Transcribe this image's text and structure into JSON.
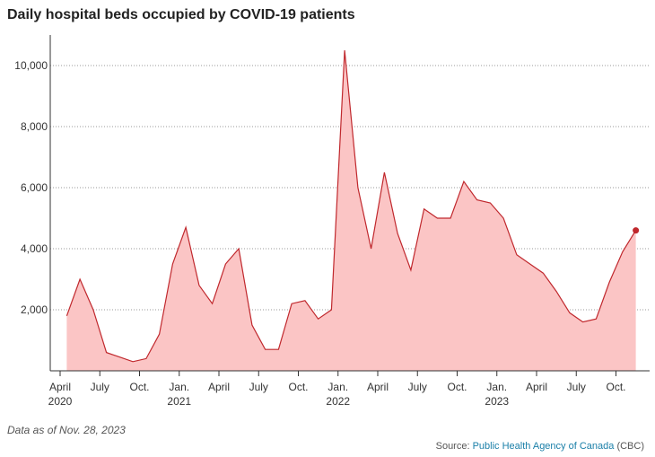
{
  "chart_data": {
    "type": "area",
    "title": "Daily hospital beds occupied by COVID-19 patients",
    "x": [
      "2020-04",
      "2020-05",
      "2020-06",
      "2020-07",
      "2020-08",
      "2020-09",
      "2020-10",
      "2020-11",
      "2020-12",
      "2021-01",
      "2021-02",
      "2021-03",
      "2021-04",
      "2021-05",
      "2021-06",
      "2021-07",
      "2021-08",
      "2021-09",
      "2021-10",
      "2021-11",
      "2021-12",
      "2022-01",
      "2022-02",
      "2022-03",
      "2022-04",
      "2022-05",
      "2022-06",
      "2022-07",
      "2022-08",
      "2022-09",
      "2022-10",
      "2022-11",
      "2022-12",
      "2023-01",
      "2023-02",
      "2023-03",
      "2023-04",
      "2023-05",
      "2023-06",
      "2023-07",
      "2023-08",
      "2023-09",
      "2023-10",
      "2023-11"
    ],
    "values": [
      1800,
      3000,
      2000,
      600,
      450,
      300,
      400,
      1200,
      3500,
      4700,
      2800,
      2200,
      3500,
      4000,
      1500,
      700,
      700,
      2200,
      2300,
      1700,
      2000,
      10500,
      6000,
      4000,
      6500,
      4500,
      3300,
      5300,
      5000,
      5000,
      6200,
      5600,
      5500,
      5000,
      3800,
      3500,
      3200,
      2600,
      1900,
      1600,
      1700,
      2900,
      3900,
      4600
    ],
    "line_color": "#c0282d",
    "fill_color": "#fbc5c5",
    "ylim": [
      0,
      11000
    ],
    "yticks": [
      {
        "value": 2000,
        "label": "2,000"
      },
      {
        "value": 4000,
        "label": "4,000"
      },
      {
        "value": 6000,
        "label": "6,000"
      },
      {
        "value": 8000,
        "label": "8,000"
      },
      {
        "value": 10000,
        "label": "10,000"
      }
    ],
    "xticks": [
      {
        "value": "2020-04",
        "label": "April"
      },
      {
        "value": "2020-07",
        "label": "July"
      },
      {
        "value": "2020-10",
        "label": "Oct."
      },
      {
        "value": "2021-01",
        "label": "Jan."
      },
      {
        "value": "2021-04",
        "label": "April"
      },
      {
        "value": "2021-07",
        "label": "July"
      },
      {
        "value": "2021-10",
        "label": "Oct."
      },
      {
        "value": "2022-01",
        "label": "Jan."
      },
      {
        "value": "2022-04",
        "label": "April"
      },
      {
        "value": "2022-07",
        "label": "July"
      },
      {
        "value": "2022-10",
        "label": "Oct."
      },
      {
        "value": "2023-01",
        "label": "Jan."
      },
      {
        "value": "2023-04",
        "label": "April"
      },
      {
        "value": "2023-07",
        "label": "July"
      },
      {
        "value": "2023-10",
        "label": "Oct."
      }
    ],
    "x_year_labels": [
      {
        "value": "2020-04",
        "label": "2020"
      },
      {
        "value": "2021-01",
        "label": "2021"
      },
      {
        "value": "2022-01",
        "label": "2022"
      },
      {
        "value": "2023-01",
        "label": "2023"
      }
    ],
    "grid": true,
    "note": "Data as of Nov. 28, 2023",
    "source_prefix": "Source:",
    "source_link": "Public Health Agency of Canada",
    "source_suffix": "(CBC)"
  }
}
